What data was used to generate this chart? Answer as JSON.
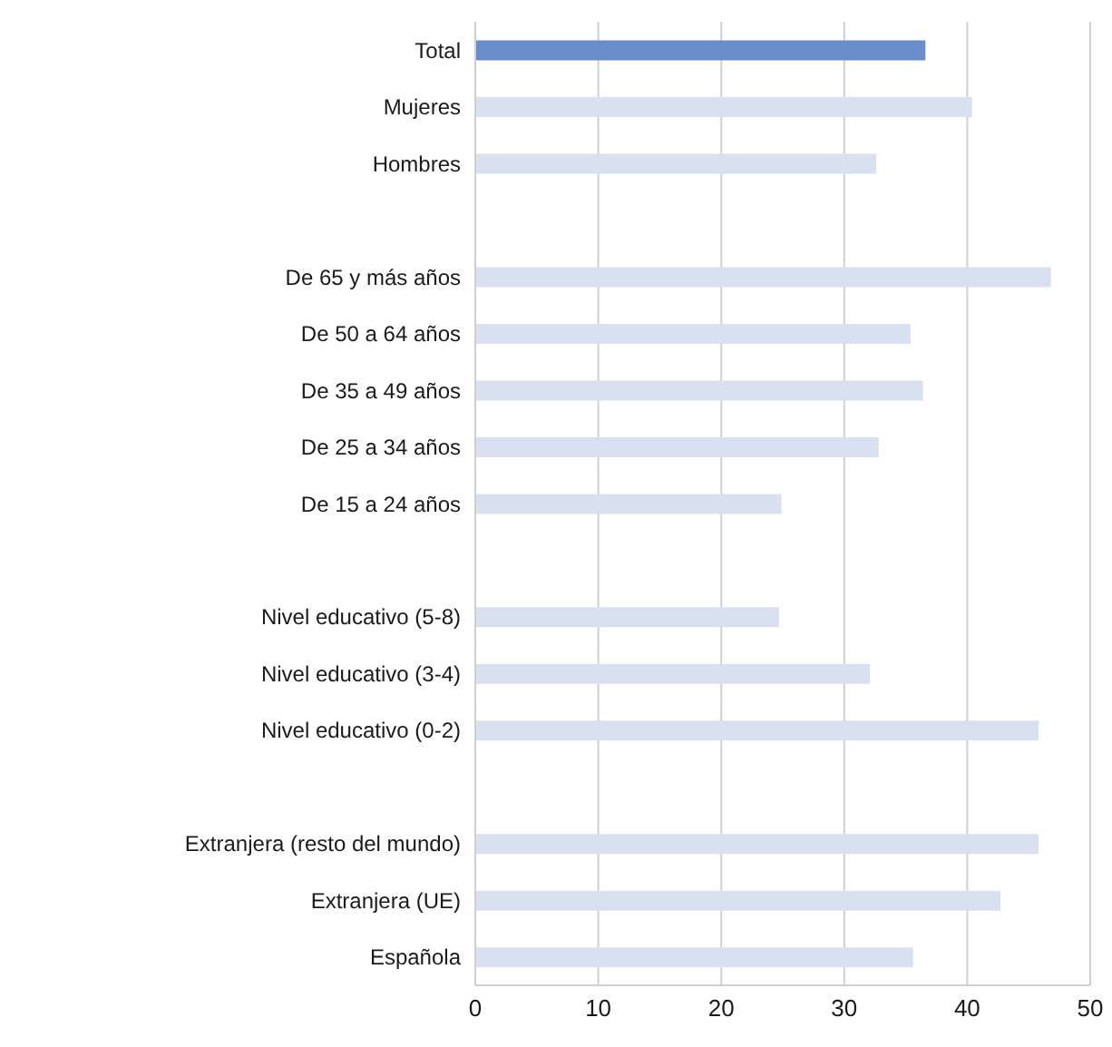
{
  "chart_data": {
    "type": "bar",
    "orientation": "horizontal",
    "categories": [
      "Total",
      "Mujeres",
      "Hombres",
      null,
      "De 65 y más años",
      "De 50 a 64 años",
      "De 35 a 49 años",
      "De 25 a 34 años",
      "De 15 a 24 años",
      null,
      "Nivel educativo (5-8)",
      "Nivel educativo (3-4)",
      "Nivel educativo (0-2)",
      null,
      "Extranjera (resto del mundo)",
      "Extranjera (UE)",
      "Española"
    ],
    "values": [
      36.6,
      40.4,
      32.6,
      null,
      46.8,
      35.4,
      36.4,
      32.8,
      24.9,
      null,
      24.7,
      32.1,
      45.8,
      null,
      45.8,
      42.7,
      35.6
    ],
    "colors": [
      "#6a8cc8",
      "#d9e1f1",
      "#d9e1f1",
      null,
      "#d9e1f1",
      "#d9e1f1",
      "#d9e1f1",
      "#d9e1f1",
      "#d9e1f1",
      null,
      "#d9e1f1",
      "#d9e1f1",
      "#d9e1f1",
      null,
      "#d9e1f1",
      "#d9e1f1",
      "#d9e1f1"
    ],
    "xlim": [
      0,
      50
    ],
    "xticks": [
      0,
      10,
      20,
      30,
      40,
      50
    ],
    "grid": "x"
  }
}
